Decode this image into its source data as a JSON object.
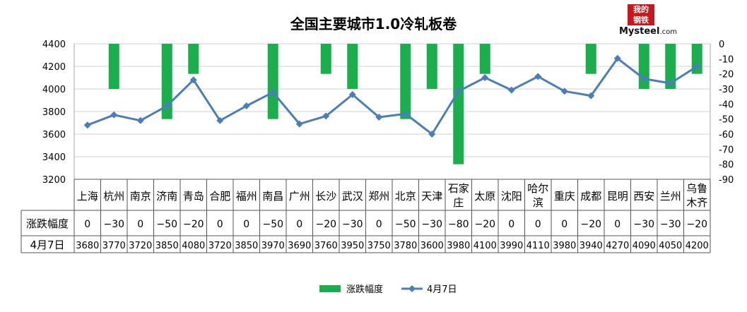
{
  "chart_data": {
    "type": "bar+line",
    "title": "全国主要城市1.0冷轧板卷",
    "logo": {
      "text_top": "我的",
      "text_bottom": "钢铁",
      "brand": "Mysteel",
      "domain": ".com",
      "color": "#c8161d"
    },
    "categories": [
      [
        "上海"
      ],
      [
        "杭州"
      ],
      [
        "南京"
      ],
      [
        "济南"
      ],
      [
        "青岛"
      ],
      [
        "合肥"
      ],
      [
        "福州"
      ],
      [
        "南昌"
      ],
      [
        "广州"
      ],
      [
        "长沙"
      ],
      [
        "武汉"
      ],
      [
        "郑州"
      ],
      [
        "北京"
      ],
      [
        "天津"
      ],
      [
        "石家",
        "庄"
      ],
      [
        "太原"
      ],
      [
        "沈阳"
      ],
      [
        "哈尔",
        "滨"
      ],
      [
        "重庆"
      ],
      [
        "成都"
      ],
      [
        "昆明"
      ],
      [
        "西安"
      ],
      [
        "兰州"
      ],
      [
        "乌鲁",
        "木齐"
      ]
    ],
    "series": [
      {
        "name": "涨跌幅度",
        "kind": "bar",
        "axis": "right",
        "color": "#1bae4c",
        "values": [
          0,
          -30,
          0,
          -50,
          -20,
          0,
          0,
          -50,
          0,
          -20,
          -30,
          0,
          -50,
          -30,
          -80,
          -20,
          0,
          0,
          0,
          -20,
          0,
          -30,
          -30,
          -20
        ],
        "display": [
          "0",
          "−30",
          "0",
          "−50",
          "−20",
          "0",
          "0",
          "−50",
          "0",
          "−20",
          "−30",
          "0",
          "−50",
          "−30",
          "−80",
          "−20",
          "0",
          "0",
          "0",
          "−20",
          "0",
          "−30",
          "−30",
          "−20"
        ]
      },
      {
        "name": "4月7日",
        "kind": "line",
        "axis": "left",
        "color": "#4a7ebb",
        "values": [
          3680,
          3770,
          3720,
          3850,
          4080,
          3720,
          3850,
          3970,
          3690,
          3760,
          3950,
          3750,
          3780,
          3600,
          3980,
          4100,
          3990,
          4110,
          3980,
          3940,
          4270,
          4090,
          4050,
          4200
        ]
      }
    ],
    "y_left": {
      "min": 3200,
      "max": 4400,
      "step": 200,
      "ticks": [
        "3200",
        "3400",
        "3600",
        "3800",
        "4000",
        "4200",
        "4400"
      ]
    },
    "y_right": {
      "min": -90,
      "max": 0,
      "step": 10,
      "ticks": [
        "-90",
        "-80",
        "-70",
        "-60",
        "-50",
        "-40",
        "-30",
        "-20",
        "-10",
        "0"
      ]
    },
    "grid": true,
    "legend_position": "bottom",
    "table_row_labels": [
      "涨跌幅度",
      "4月7日"
    ]
  }
}
